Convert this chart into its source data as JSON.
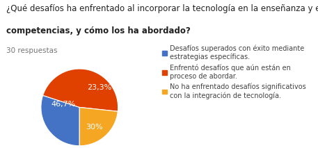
{
  "title_line1": "¿Qué desafíos ha enfrentado al incorporar la tecnología en la enseñanza y evaluación de",
  "title_line2": "competencias, y cómo los ha abordado?",
  "subtitle": "30 respuestas",
  "slices": [
    30.0,
    46.7,
    23.3
  ],
  "colors": [
    "#4472c4",
    "#e04000",
    "#f5a623"
  ],
  "labels": [
    "30%",
    "46,7%",
    "23,3%"
  ],
  "legend_labels": [
    "Desafíos superados con éxito mediante\nestrategias específicas.",
    "Enfrentó desafíos que aún están en\nproceso de abordar.",
    "No ha enfrentado desafíos significativos\ncon la integración de tecnología."
  ],
  "background_color": "#ffffff",
  "title_fontsize": 8.5,
  "subtitle_fontsize": 7.5,
  "legend_fontsize": 7.0,
  "label_fontsize": 8.0,
  "startangle": 90,
  "label_colors": [
    "white",
    "white",
    "white"
  ]
}
